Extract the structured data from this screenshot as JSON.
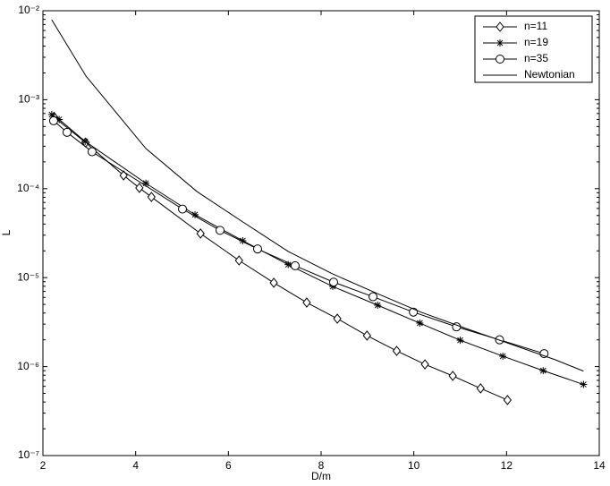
{
  "chart_data": {
    "type": "line",
    "xlabel": "D/m",
    "ylabel": "L",
    "xlim": [
      2,
      14
    ],
    "xticks": [
      2,
      4,
      6,
      8,
      10,
      12,
      14
    ],
    "ylim": [
      1e-07,
      0.01
    ],
    "log_y": true,
    "yticks": [
      {
        "value": 1e-07,
        "label": "10⁻⁷"
      },
      {
        "value": 1e-06,
        "label": "10⁻⁶"
      },
      {
        "value": 1e-05,
        "label": "10⁻⁵"
      },
      {
        "value": 0.0001,
        "label": "10⁻⁴"
      },
      {
        "value": 0.001,
        "label": "10⁻³"
      },
      {
        "value": 0.01,
        "label": "10⁻²"
      }
    ],
    "grid": false,
    "legend": "upper right",
    "series": [
      {
        "name": "n=11",
        "color": "#000000",
        "marker": "diamond",
        "x": [
          2.25,
          2.92,
          3.74,
          4.08,
          4.34,
          5.4,
          6.23,
          6.98,
          7.69,
          8.35,
          8.99,
          9.63,
          10.24,
          10.84,
          11.44,
          12.02
        ],
        "values": [
          0.00063,
          0.00033,
          0.000141,
          0.000102,
          8.07e-05,
          3.13e-05,
          1.56e-05,
          8.75e-06,
          5.25e-06,
          3.46e-06,
          2.23e-06,
          1.5e-06,
          1.06e-06,
          7.86e-07,
          5.69e-07,
          4.21e-07
        ]
      },
      {
        "name": "n=19",
        "color": "#000000",
        "marker": "star",
        "x": [
          2.19,
          2.35,
          2.91,
          4.22,
          5.28,
          6.31,
          7.29,
          8.25,
          9.22,
          10.13,
          11.0,
          11.92,
          12.79,
          13.66
        ],
        "values": [
          0.00068,
          0.0006,
          0.00034,
          0.000115,
          5.1e-05,
          2.6e-05,
          1.4e-05,
          7.96e-06,
          4.9e-06,
          3.08e-06,
          1.98e-06,
          1.31e-06,
          9e-07,
          6.3e-07
        ]
      },
      {
        "name": "n=35",
        "color": "#000000",
        "marker": "circle",
        "x": [
          2.23,
          2.52,
          3.06,
          5.01,
          5.82,
          6.63,
          7.44,
          8.27,
          9.12,
          9.99,
          10.92,
          11.85,
          12.81
        ],
        "values": [
          0.00058,
          0.00043,
          0.00026,
          5.9e-05,
          3.4e-05,
          2.1e-05,
          1.36e-05,
          8.9e-06,
          6.1e-06,
          4.1e-06,
          2.8e-06,
          2e-06,
          1.4e-06
        ]
      },
      {
        "name": "Newtonian",
        "color": "#000000",
        "marker": "none",
        "x": [
          2.19,
          2.93,
          4.22,
          5.32,
          6.29,
          7.29,
          8.25,
          9.26,
          10.15,
          11.11,
          12.08,
          13.04,
          13.66
        ],
        "values": [
          0.0079,
          0.00184,
          0.000283,
          9.3e-05,
          4.3e-05,
          1.97e-05,
          1.1e-05,
          6.46e-06,
          4.1e-06,
          2.7e-06,
          1.8e-06,
          1.2e-06,
          8.9e-07
        ]
      }
    ]
  }
}
